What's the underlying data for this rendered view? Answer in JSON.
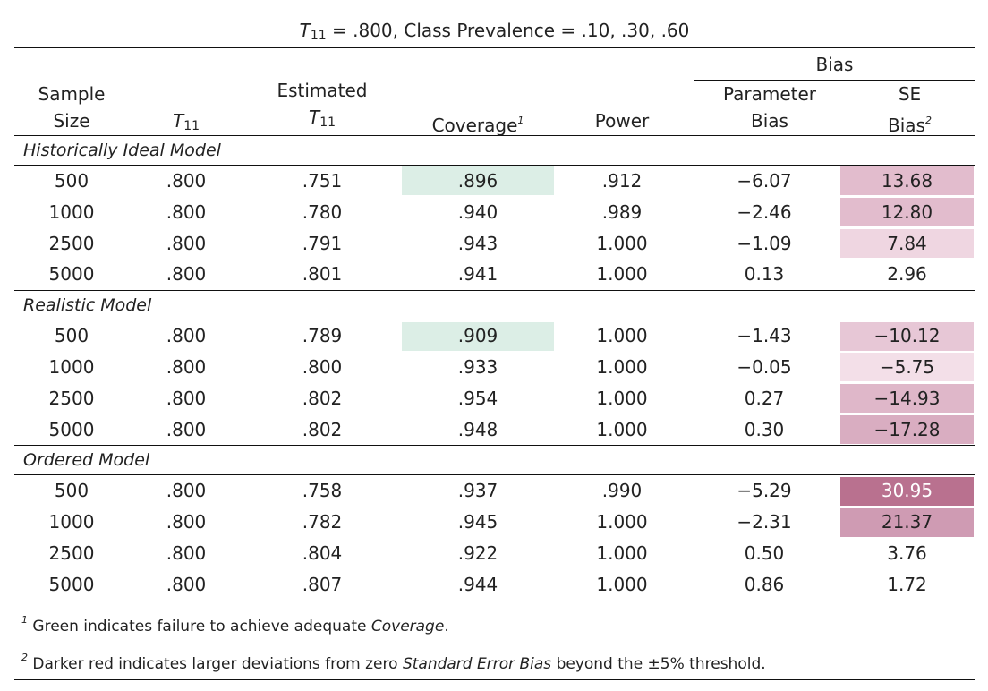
{
  "title_pre": "T",
  "title_sub": "11",
  "title_post": " = .800, Class Prevalence = .10, .30, .60",
  "header": {
    "bias_group": "Bias",
    "sample_size_1": "Sample",
    "sample_size_2": "Size",
    "t11_main": "T",
    "t11_sub": "11",
    "estimated_1": "Estimated",
    "estimated_t": "T",
    "estimated_sub": "11",
    "coverage": "Coverage",
    "coverage_sup": "1",
    "power": "Power",
    "param_bias_1": "Parameter",
    "param_bias_2": "Bias",
    "se_bias_1": "SE",
    "se_bias_2": "Bias",
    "se_bias_sup": "2"
  },
  "groups": [
    {
      "name": "Historically Ideal Model",
      "rows": [
        {
          "n": "500",
          "t11": ".800",
          "est": ".751",
          "coverage": ".896",
          "power": ".912",
          "pbias": "−6.07",
          "sebias": "13.68",
          "cov_bg": "#dceee6",
          "se_bg": "#e2bccd",
          "se_fg": "#222222"
        },
        {
          "n": "1000",
          "t11": ".800",
          "est": ".780",
          "coverage": ".940",
          "power": ".989",
          "pbias": "−2.46",
          "sebias": "12.80",
          "cov_bg": "transparent",
          "se_bg": "#e2bccd",
          "se_fg": "#222222"
        },
        {
          "n": "2500",
          "t11": ".800",
          "est": ".791",
          "coverage": ".943",
          "power": "1.000",
          "pbias": "−1.09",
          "sebias": "7.84",
          "cov_bg": "transparent",
          "se_bg": "#efd6e1",
          "se_fg": "#222222"
        },
        {
          "n": "5000",
          "t11": ".800",
          "est": ".801",
          "coverage": ".941",
          "power": "1.000",
          "pbias": "0.13",
          "sebias": "2.96",
          "cov_bg": "transparent",
          "se_bg": "transparent",
          "se_fg": "#222222"
        }
      ]
    },
    {
      "name": "Realistic Model",
      "rows": [
        {
          "n": "500",
          "t11": ".800",
          "est": ".789",
          "coverage": ".909",
          "power": "1.000",
          "pbias": "−1.43",
          "sebias": "−10.12",
          "cov_bg": "#dceee6",
          "se_bg": "#e7c7d6",
          "se_fg": "#222222"
        },
        {
          "n": "1000",
          "t11": ".800",
          "est": ".800",
          "coverage": ".933",
          "power": "1.000",
          "pbias": "−0.05",
          "sebias": "−5.75",
          "cov_bg": "transparent",
          "se_bg": "#f3dfe8",
          "se_fg": "#222222"
        },
        {
          "n": "2500",
          "t11": ".800",
          "est": ".802",
          "coverage": ".954",
          "power": "1.000",
          "pbias": "0.27",
          "sebias": "−14.93",
          "cov_bg": "transparent",
          "se_bg": "#dfb7c9",
          "se_fg": "#222222"
        },
        {
          "n": "5000",
          "t11": ".800",
          "est": ".802",
          "coverage": ".948",
          "power": "1.000",
          "pbias": "0.30",
          "sebias": "−17.28",
          "cov_bg": "transparent",
          "se_bg": "#d9adc1",
          "se_fg": "#222222"
        }
      ]
    },
    {
      "name": "Ordered Model",
      "rows": [
        {
          "n": "500",
          "t11": ".800",
          "est": ".758",
          "coverage": ".937",
          "power": ".990",
          "pbias": "−5.29",
          "sebias": "30.95",
          "cov_bg": "transparent",
          "se_bg": "#b9718f",
          "se_fg": "#ffffff"
        },
        {
          "n": "1000",
          "t11": ".800",
          "est": ".782",
          "coverage": ".945",
          "power": "1.000",
          "pbias": "−2.31",
          "sebias": "21.37",
          "cov_bg": "transparent",
          "se_bg": "#cf9bb3",
          "se_fg": "#222222"
        },
        {
          "n": "2500",
          "t11": ".800",
          "est": ".804",
          "coverage": ".922",
          "power": "1.000",
          "pbias": "0.50",
          "sebias": "3.76",
          "cov_bg": "transparent",
          "se_bg": "transparent",
          "se_fg": "#222222"
        },
        {
          "n": "5000",
          "t11": ".800",
          "est": ".807",
          "coverage": ".944",
          "power": "1.000",
          "pbias": "0.86",
          "sebias": "1.72",
          "cov_bg": "transparent",
          "se_bg": "transparent",
          "se_fg": "#222222"
        }
      ]
    }
  ],
  "notes": {
    "n1_sup": "1",
    "n1_text": " Green indicates failure to achieve adequate ",
    "n1_ital": "Coverage",
    "n1_end": ".",
    "n2_sup": "2",
    "n2_text": " Darker red indicates larger deviations from zero ",
    "n2_ital": "Standard Error Bias",
    "n2_end": " beyond the ±5% threshold."
  }
}
